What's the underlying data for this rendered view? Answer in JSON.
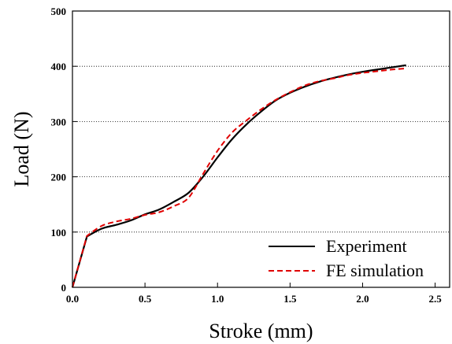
{
  "chart_data": {
    "type": "line",
    "title": "",
    "xlabel": "Stroke (mm)",
    "ylabel": "Load (N)",
    "xlim": [
      0,
      2.6
    ],
    "ylim": [
      0,
      500
    ],
    "x_ticks": [
      "0.0",
      "0.5",
      "1.0",
      "1.5",
      "2.0",
      "2.5"
    ],
    "y_ticks": [
      "0",
      "100",
      "200",
      "300",
      "400",
      "500"
    ],
    "grid": "horizontal dotted at 100, 200, 300, 400",
    "legend": "bottom-right",
    "series": [
      {
        "name": "Experiment",
        "color": "#000000",
        "style": "solid",
        "x": [
          0.0,
          0.1,
          0.2,
          0.3,
          0.4,
          0.5,
          0.6,
          0.7,
          0.8,
          0.9,
          1.0,
          1.1,
          1.2,
          1.3,
          1.4,
          1.5,
          1.6,
          1.7,
          1.8,
          1.9,
          2.0,
          2.1,
          2.2,
          2.3
        ],
        "y": [
          0,
          92,
          106,
          113,
          121,
          132,
          141,
          155,
          171,
          200,
          235,
          268,
          295,
          318,
          338,
          352,
          363,
          372,
          379,
          385,
          390,
          394,
          398,
          402
        ]
      },
      {
        "name": "FE simulation",
        "color": "#e00000",
        "style": "dashed",
        "x": [
          0.0,
          0.1,
          0.2,
          0.3,
          0.4,
          0.5,
          0.6,
          0.7,
          0.8,
          0.9,
          1.0,
          1.1,
          1.2,
          1.3,
          1.4,
          1.5,
          1.6,
          1.7,
          1.8,
          1.9,
          2.0,
          2.1,
          2.2,
          2.3
        ],
        "y": [
          0,
          93,
          111,
          119,
          124,
          131,
          136,
          147,
          162,
          205,
          247,
          280,
          302,
          322,
          339,
          353,
          365,
          373,
          378,
          384,
          388,
          391,
          394,
          396
        ]
      }
    ]
  }
}
